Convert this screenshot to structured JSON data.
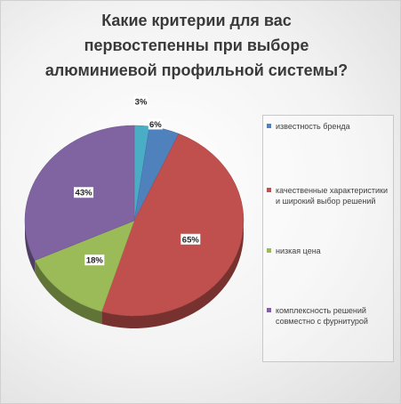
{
  "chart_data": {
    "type": "pie",
    "title": "Какие критерии для вас\nпервостепенны при выборе\nалюминиевой профильной системы?",
    "categories": [
      "известность бренда",
      "качественные характеристики и широкий выбор решений",
      "низкая цена",
      "комплексность решений совместно с фурнитурой"
    ],
    "values": [
      6,
      65,
      18,
      43
    ],
    "data_labels": [
      "6%",
      "65%",
      "18%",
      "43%"
    ],
    "extra_slices": [
      {
        "value": 3,
        "label": "3%",
        "color": "#4bacc6"
      }
    ],
    "colors": [
      "#4f81bd",
      "#c0504d",
      "#9bbb59",
      "#8064a2"
    ],
    "legend_position": "right",
    "style": "3d"
  }
}
